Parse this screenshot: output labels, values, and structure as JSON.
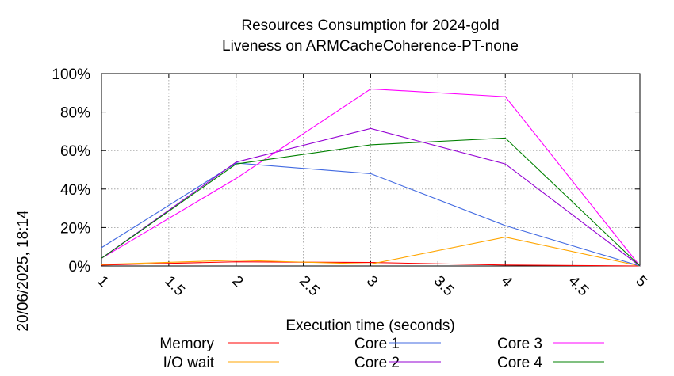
{
  "chart_data": {
    "type": "line",
    "title": "Resources Consumption for 2024-gold",
    "subtitle": "Liveness on ARMCacheCoherence-PT-none",
    "xlabel": "Execution time (seconds)",
    "ylabel": "",
    "side_label": "20/06/2025, 18:14",
    "xlim": [
      1,
      5
    ],
    "ylim": [
      0,
      100
    ],
    "x_ticks": [
      "1",
      "1.5",
      "2",
      "2.5",
      "3",
      "3.5",
      "4",
      "4.5",
      "5"
    ],
    "y_ticks": [
      "0%",
      "20%",
      "40%",
      "60%",
      "80%",
      "100%"
    ],
    "grid": true,
    "legend_position": "bottom",
    "x": [
      1,
      2,
      3,
      4,
      5
    ],
    "series": [
      {
        "name": "Memory",
        "color": "#ff0000",
        "values": [
          0.5,
          2.2,
          1.8,
          0.5,
          0
        ]
      },
      {
        "name": "I/O wait",
        "color": "#ffa500",
        "values": [
          0.8,
          3,
          1,
          15,
          0
        ]
      },
      {
        "name": "Core 1",
        "color": "#4169e1",
        "values": [
          9.5,
          53.5,
          48,
          21,
          0
        ]
      },
      {
        "name": "Core 2",
        "color": "#9400d3",
        "values": [
          4,
          54,
          71.5,
          53,
          0
        ]
      },
      {
        "name": "Core 3",
        "color": "#ff00ff",
        "values": [
          4,
          45.5,
          92,
          88,
          0
        ]
      },
      {
        "name": "Core 4",
        "color": "#008000",
        "values": [
          4,
          53,
          63,
          66.5,
          0
        ]
      }
    ]
  }
}
